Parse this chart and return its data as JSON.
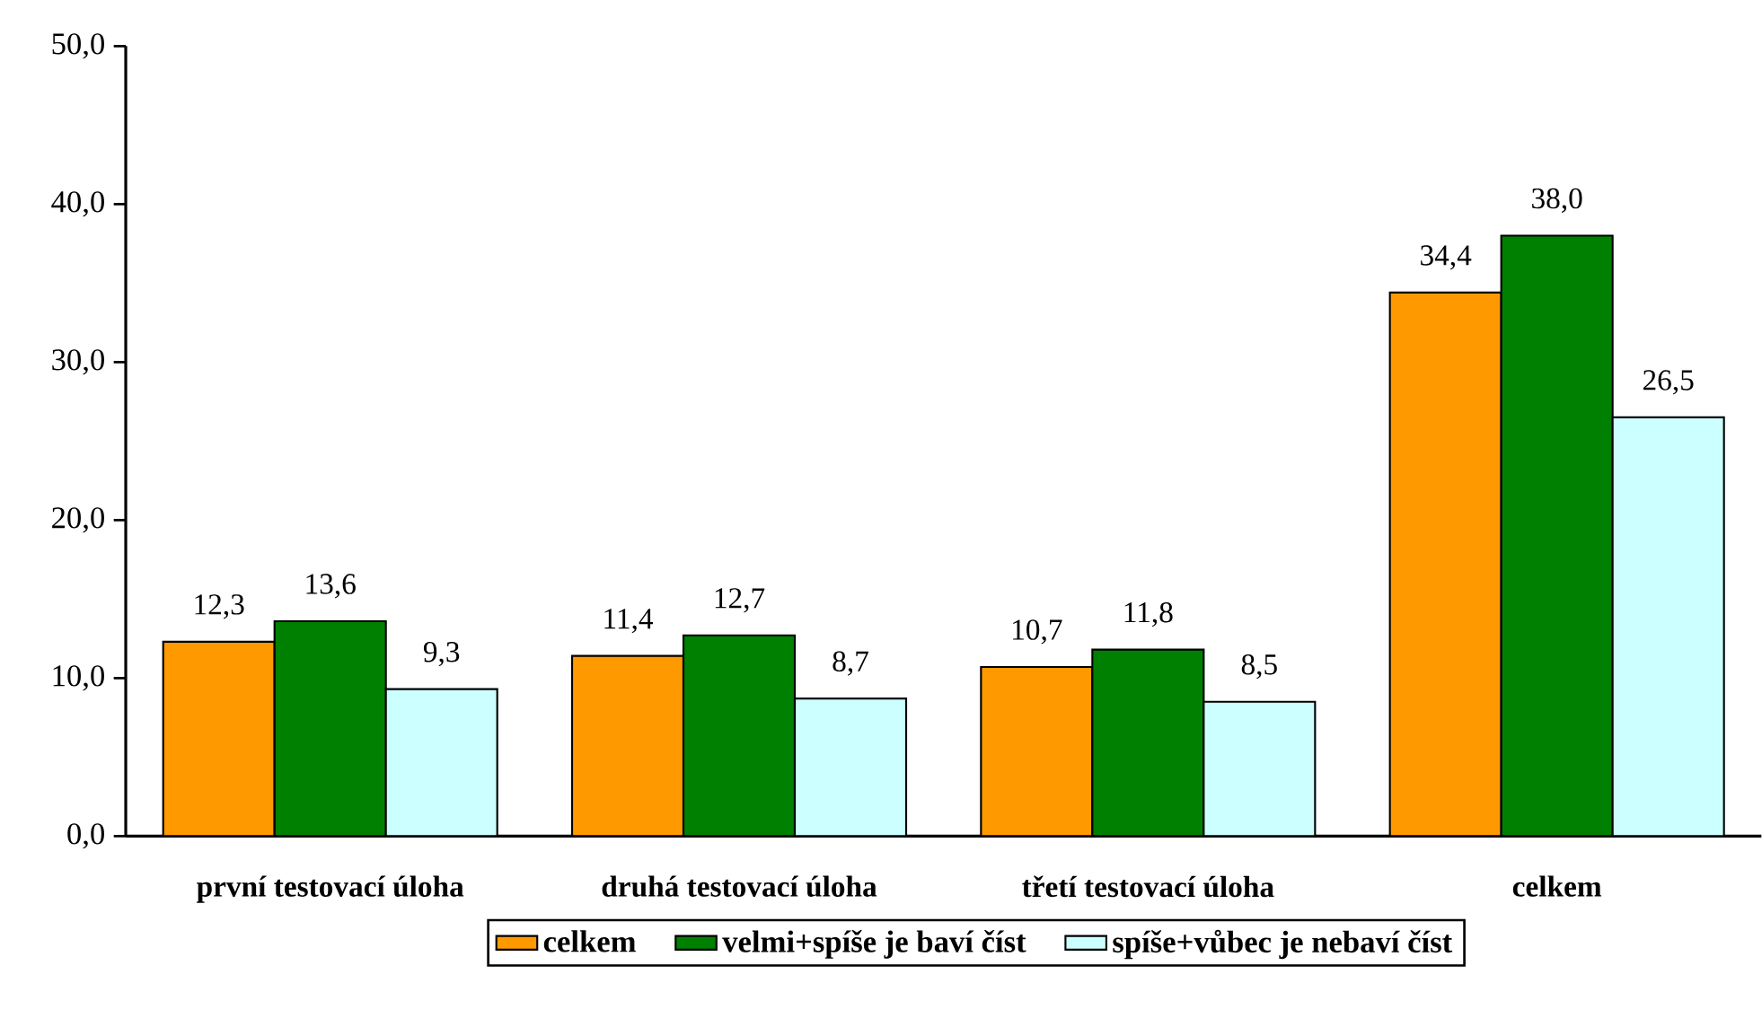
{
  "chart_data": {
    "type": "bar",
    "categories": [
      "první testovací úloha",
      "druhá testovací úloha",
      "třetí testovací úloha",
      "celkem"
    ],
    "series": [
      {
        "name": "celkem",
        "color": "#ff9900",
        "values": [
          12.3,
          11.4,
          10.7,
          34.4
        ],
        "value_labels": [
          "12,3",
          "11,4",
          "10,7",
          "34,4"
        ]
      },
      {
        "name": "velmi+spíše je baví číst",
        "color": "#008000",
        "values": [
          13.6,
          12.7,
          11.8,
          38.0
        ],
        "value_labels": [
          "13,6",
          "12,7",
          "11,8",
          "38,0"
        ]
      },
      {
        "name": "spíše+vůbec je nebaví číst",
        "color": "#ccffff",
        "values": [
          9.3,
          8.7,
          8.5,
          26.5
        ],
        "value_labels": [
          "9,3",
          "8,7",
          "8,5",
          "26,5"
        ]
      }
    ],
    "ylim": [
      0,
      50
    ],
    "yticks": [
      {
        "value": 0,
        "label": "0,0"
      },
      {
        "value": 10,
        "label": "10,0"
      },
      {
        "value": 20,
        "label": "20,0"
      },
      {
        "value": 30,
        "label": "30,0"
      },
      {
        "value": 40,
        "label": "40,0"
      },
      {
        "value": 50,
        "label": "50,0"
      }
    ],
    "grid": false,
    "legend": "bottom"
  }
}
